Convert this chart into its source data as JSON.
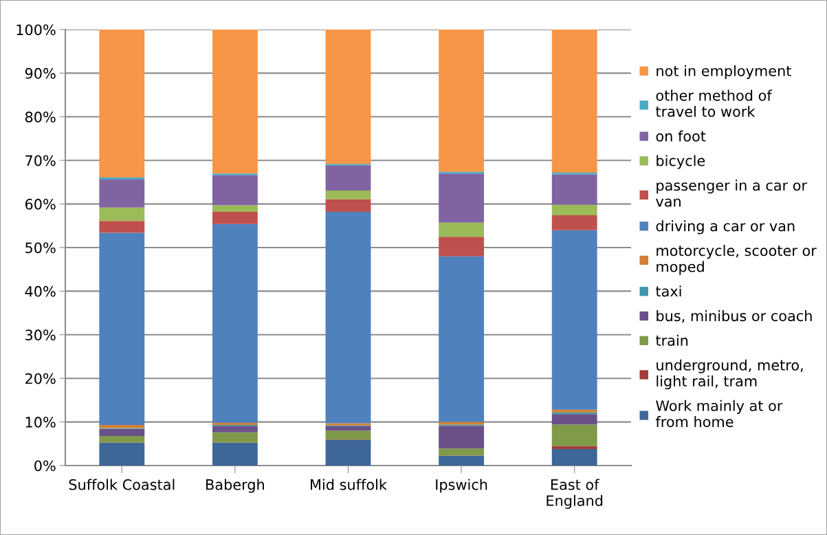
{
  "chart_data": {
    "type": "bar",
    "stacked": true,
    "categories": [
      "Suffolk Coastal",
      "Babergh",
      "Mid suffolk",
      "Ipswich",
      "East of\nEngland"
    ],
    "series": [
      {
        "name": "Work mainly at or\nfrom home",
        "color": "#3d6799",
        "values": [
          5.2,
          5.2,
          5.9,
          2.2,
          3.8
        ]
      },
      {
        "name": "underground, metro,\nlight rail, tram",
        "color": "#a33c3a",
        "values": [
          0.1,
          0.1,
          0.1,
          0.1,
          0.7
        ]
      },
      {
        "name": "train",
        "color": "#7f9a48",
        "values": [
          1.5,
          2.3,
          2.0,
          1.6,
          4.9
        ]
      },
      {
        "name": "bus, minibus or coach",
        "color": "#6a5088",
        "values": [
          1.6,
          1.5,
          1.0,
          5.2,
          2.4
        ]
      },
      {
        "name": "taxi",
        "color": "#3e97ab",
        "values": [
          0.2,
          0.2,
          0.2,
          0.3,
          0.4
        ]
      },
      {
        "name": "motorcycle, scooter or\nmoped",
        "color": "#d28033",
        "values": [
          0.7,
          0.5,
          0.5,
          0.6,
          0.6
        ]
      },
      {
        "name": "driving a car or van",
        "color": "#4f81bd",
        "values": [
          44.1,
          45.6,
          48.5,
          38.0,
          41.2
        ]
      },
      {
        "name": "passenger in a car or\nvan",
        "color": "#c0504d",
        "values": [
          2.7,
          2.8,
          2.9,
          4.5,
          3.4
        ]
      },
      {
        "name": "bicycle",
        "color": "#9bbb59",
        "values": [
          3.1,
          1.5,
          2.0,
          3.2,
          2.4
        ]
      },
      {
        "name": "on foot",
        "color": "#8064a2",
        "values": [
          6.4,
          6.9,
          5.8,
          11.3,
          7.0
        ]
      },
      {
        "name": "other method of\ntravel to work",
        "color": "#4bacc6",
        "values": [
          0.5,
          0.4,
          0.3,
          0.4,
          0.4
        ]
      },
      {
        "name": "not in employment",
        "color": "#f79646",
        "values": [
          33.9,
          33.0,
          30.8,
          32.6,
          32.8
        ]
      }
    ],
    "ylim": [
      0,
      100
    ],
    "yticks": [
      {
        "value": 0,
        "label": "0%"
      },
      {
        "value": 10,
        "label": "10%"
      },
      {
        "value": 20,
        "label": "20%"
      },
      {
        "value": 30,
        "label": "30%"
      },
      {
        "value": 40,
        "label": "40%"
      },
      {
        "value": 50,
        "label": "50%"
      },
      {
        "value": 60,
        "label": "60%"
      },
      {
        "value": 70,
        "label": "70%"
      },
      {
        "value": 80,
        "label": "80%"
      },
      {
        "value": 90,
        "label": "90%"
      },
      {
        "value": 100,
        "label": "100%"
      }
    ],
    "grid": "y",
    "legend": "right"
  }
}
